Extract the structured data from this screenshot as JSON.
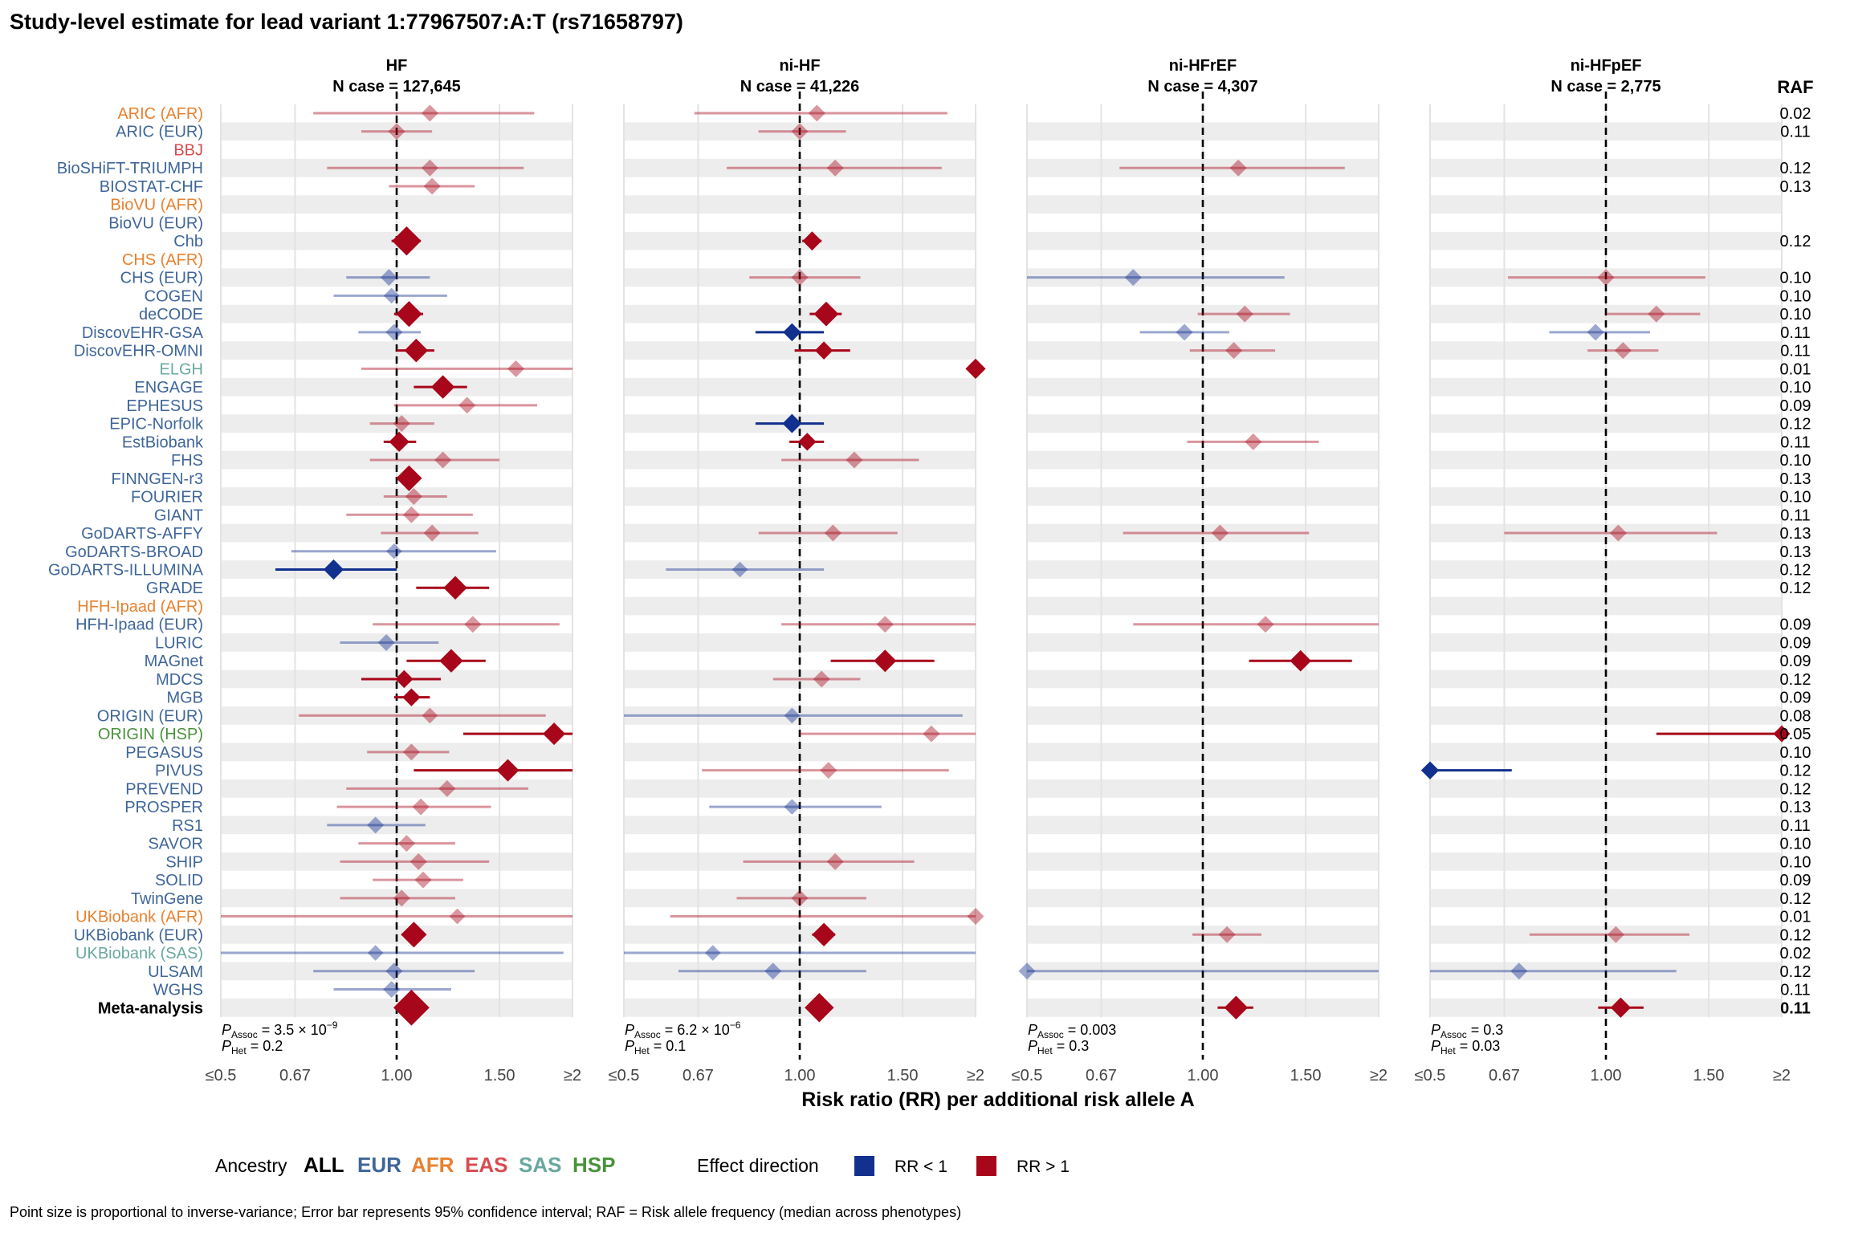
{
  "chart_data": {
    "type": "forest",
    "title": "Study-level estimate for lead variant 1:77967507:A:T (rs71658797)",
    "xlabel": "Risk ratio (RR) per additional risk allele A",
    "x_scale": "log",
    "xlim": [
      0.5,
      2
    ],
    "x_ticks": [
      0.5,
      0.67,
      1.0,
      1.5,
      2
    ],
    "x_tick_labels": [
      "≤0.5",
      "0.67",
      "1.00",
      "1.50",
      "≥2"
    ],
    "reference_line": 1.0,
    "raf_header": "RAF",
    "colors": {
      "EUR": "#3f6699",
      "AFR": "#e8812f",
      "EAS": "#d84c51",
      "SAS": "#69a89f",
      "HSP": "#49923b",
      "ALL": "#000000",
      "rr_low": "#12308e",
      "rr_high": "#a8061a"
    },
    "studies": [
      {
        "name": "ARIC (AFR)",
        "ancestry": "AFR",
        "raf": "0.02"
      },
      {
        "name": "ARIC (EUR)",
        "ancestry": "EUR",
        "raf": "0.11"
      },
      {
        "name": "BBJ",
        "ancestry": "EAS",
        "raf": ""
      },
      {
        "name": "BioSHiFT-TRIUMPH",
        "ancestry": "EUR",
        "raf": "0.12"
      },
      {
        "name": "BIOSTAT-CHF",
        "ancestry": "EUR",
        "raf": "0.13"
      },
      {
        "name": "BioVU (AFR)",
        "ancestry": "AFR",
        "raf": ""
      },
      {
        "name": "BioVU (EUR)",
        "ancestry": "EUR",
        "raf": ""
      },
      {
        "name": "Chb",
        "ancestry": "EUR",
        "raf": "0.12"
      },
      {
        "name": "CHS (AFR)",
        "ancestry": "AFR",
        "raf": ""
      },
      {
        "name": "CHS (EUR)",
        "ancestry": "EUR",
        "raf": "0.10"
      },
      {
        "name": "COGEN",
        "ancestry": "EUR",
        "raf": "0.10"
      },
      {
        "name": "deCODE",
        "ancestry": "EUR",
        "raf": "0.10"
      },
      {
        "name": "DiscovEHR-GSA",
        "ancestry": "EUR",
        "raf": "0.11"
      },
      {
        "name": "DiscovEHR-OMNI",
        "ancestry": "EUR",
        "raf": "0.11"
      },
      {
        "name": "ELGH",
        "ancestry": "SAS",
        "raf": "0.01"
      },
      {
        "name": "ENGAGE",
        "ancestry": "EUR",
        "raf": "0.10"
      },
      {
        "name": "EPHESUS",
        "ancestry": "EUR",
        "raf": "0.09"
      },
      {
        "name": "EPIC-Norfolk",
        "ancestry": "EUR",
        "raf": "0.12"
      },
      {
        "name": "EstBiobank",
        "ancestry": "EUR",
        "raf": "0.11"
      },
      {
        "name": "FHS",
        "ancestry": "EUR",
        "raf": "0.10"
      },
      {
        "name": "FINNGEN-r3",
        "ancestry": "EUR",
        "raf": "0.13"
      },
      {
        "name": "FOURIER",
        "ancestry": "EUR",
        "raf": "0.10"
      },
      {
        "name": "GIANT",
        "ancestry": "EUR",
        "raf": "0.11"
      },
      {
        "name": "GoDARTS-AFFY",
        "ancestry": "EUR",
        "raf": "0.13"
      },
      {
        "name": "GoDARTS-BROAD",
        "ancestry": "EUR",
        "raf": "0.13"
      },
      {
        "name": "GoDARTS-ILLUMINA",
        "ancestry": "EUR",
        "raf": "0.12"
      },
      {
        "name": "GRADE",
        "ancestry": "EUR",
        "raf": "0.12"
      },
      {
        "name": "HFH-Ipaad (AFR)",
        "ancestry": "AFR",
        "raf": ""
      },
      {
        "name": "HFH-Ipaad (EUR)",
        "ancestry": "EUR",
        "raf": "0.09"
      },
      {
        "name": "LURIC",
        "ancestry": "EUR",
        "raf": "0.09"
      },
      {
        "name": "MAGnet",
        "ancestry": "EUR",
        "raf": "0.09"
      },
      {
        "name": "MDCS",
        "ancestry": "EUR",
        "raf": "0.12"
      },
      {
        "name": "MGB",
        "ancestry": "EUR",
        "raf": "0.09"
      },
      {
        "name": "ORIGIN (EUR)",
        "ancestry": "EUR",
        "raf": "0.08"
      },
      {
        "name": "ORIGIN (HSP)",
        "ancestry": "HSP",
        "raf": "0.05"
      },
      {
        "name": "PEGASUS",
        "ancestry": "EUR",
        "raf": "0.10"
      },
      {
        "name": "PIVUS",
        "ancestry": "EUR",
        "raf": "0.12"
      },
      {
        "name": "PREVEND",
        "ancestry": "EUR",
        "raf": "0.12"
      },
      {
        "name": "PROSPER",
        "ancestry": "EUR",
        "raf": "0.13"
      },
      {
        "name": "RS1",
        "ancestry": "EUR",
        "raf": "0.11"
      },
      {
        "name": "SAVOR",
        "ancestry": "EUR",
        "raf": "0.10"
      },
      {
        "name": "SHIP",
        "ancestry": "EUR",
        "raf": "0.10"
      },
      {
        "name": "SOLID",
        "ancestry": "EUR",
        "raf": "0.09"
      },
      {
        "name": "TwinGene",
        "ancestry": "EUR",
        "raf": "0.12"
      },
      {
        "name": "UKBiobank (AFR)",
        "ancestry": "AFR",
        "raf": "0.01"
      },
      {
        "name": "UKBiobank (EUR)",
        "ancestry": "EUR",
        "raf": "0.12"
      },
      {
        "name": "UKBiobank (SAS)",
        "ancestry": "SAS",
        "raf": "0.02"
      },
      {
        "name": "ULSAM",
        "ancestry": "EUR",
        "raf": "0.12"
      },
      {
        "name": "WGHS",
        "ancestry": "EUR",
        "raf": "0.11"
      },
      {
        "name": "Meta-analysis",
        "ancestry": "ALL",
        "raf": "0.11"
      }
    ],
    "panels": [
      {
        "name": "HF",
        "n_case": "N case = 127,645",
        "p_assoc_mant": "3.5",
        "p_assoc_exp": "−9",
        "p_het": "0.2",
        "estimates": [
          [
            1.14,
            0.72,
            1.72,
            0.5
          ],
          [
            1.0,
            0.87,
            1.15,
            0.5
          ],
          null,
          [
            1.14,
            0.76,
            1.65,
            0.5
          ],
          [
            1.15,
            0.97,
            1.36,
            0.5
          ],
          null,
          null,
          [
            1.04,
            0.98,
            1.1,
            1.6
          ],
          null,
          [
            0.97,
            0.82,
            1.14,
            0.5
          ],
          [
            0.98,
            0.78,
            1.22,
            0.4
          ],
          [
            1.05,
            0.99,
            1.11,
            1.3
          ],
          [
            0.99,
            0.86,
            1.1,
            0.5
          ],
          [
            1.08,
            1.0,
            1.16,
            1.1
          ],
          [
            1.6,
            0.87,
            2.5,
            0.5
          ],
          [
            1.2,
            1.07,
            1.32,
            1.1
          ],
          [
            1.32,
            0.99,
            1.74,
            0.5
          ],
          [
            1.02,
            0.9,
            1.16,
            0.5
          ],
          [
            1.01,
            0.95,
            1.08,
            0.8
          ],
          [
            1.2,
            0.9,
            1.5,
            0.5
          ],
          [
            1.05,
            1.01,
            1.09,
            1.3
          ],
          [
            1.07,
            0.95,
            1.22,
            0.5
          ],
          [
            1.06,
            0.82,
            1.35,
            0.5
          ],
          [
            1.15,
            0.94,
            1.38,
            0.5
          ],
          [
            0.99,
            0.66,
            1.48,
            0.4
          ],
          [
            0.78,
            0.62,
            1.0,
            0.8
          ],
          [
            1.26,
            1.08,
            1.44,
            1.1
          ],
          null,
          [
            1.35,
            0.91,
            1.9,
            0.5
          ],
          [
            0.96,
            0.8,
            1.18,
            0.5
          ],
          [
            1.24,
            1.04,
            1.42,
            1.1
          ],
          [
            1.03,
            0.87,
            1.19,
            0.6
          ],
          [
            1.06,
            0.99,
            1.14,
            0.6
          ],
          [
            1.14,
            0.68,
            1.8,
            0.4
          ],
          [
            1.86,
            1.3,
            2.5,
            1.0
          ],
          [
            1.06,
            0.89,
            1.23,
            0.5
          ],
          [
            1.55,
            1.07,
            2.4,
            1.0
          ],
          [
            1.22,
            0.82,
            1.68,
            0.5
          ],
          [
            1.1,
            0.79,
            1.45,
            0.5
          ],
          [
            0.92,
            0.76,
            1.12,
            0.5
          ],
          [
            1.04,
            0.86,
            1.26,
            0.5
          ],
          [
            1.09,
            0.8,
            1.44,
            0.5
          ],
          [
            1.11,
            0.91,
            1.3,
            0.5
          ],
          [
            1.02,
            0.8,
            1.26,
            0.5
          ],
          [
            1.27,
            0.4,
            2.5,
            0.4
          ],
          [
            1.07,
            1.02,
            1.11,
            1.3
          ],
          [
            0.92,
            0.4,
            1.93,
            0.4
          ],
          [
            0.99,
            0.72,
            1.36,
            0.5
          ],
          [
            0.98,
            0.78,
            1.24,
            0.5
          ],
          [
            1.06,
            1.0,
            1.11,
            2.2
          ]
        ]
      },
      {
        "name": "ni-HF",
        "n_case": "N case = 41,226",
        "p_assoc_mant": "6.2",
        "p_assoc_exp": "−6",
        "p_het": "0.1",
        "estimates": [
          [
            1.07,
            0.66,
            1.79,
            0.5
          ],
          [
            1.0,
            0.85,
            1.2,
            0.5
          ],
          null,
          [
            1.15,
            0.75,
            1.75,
            0.5
          ],
          null,
          null,
          null,
          [
            1.05,
            1.01,
            1.09,
            0.7
          ],
          null,
          [
            1.0,
            0.82,
            1.27,
            0.5
          ],
          null,
          [
            1.11,
            1.04,
            1.18,
            1.2
          ],
          [
            0.97,
            0.84,
            1.1,
            0.6
          ],
          [
            1.1,
            0.98,
            1.22,
            0.6
          ],
          [
            2.0,
            2.0,
            2.0,
            0.8
          ],
          null,
          null,
          [
            0.97,
            0.84,
            1.1,
            0.7
          ],
          [
            1.03,
            0.96,
            1.1,
            0.6
          ],
          [
            1.24,
            0.93,
            1.6,
            0.5
          ],
          null,
          null,
          null,
          [
            1.14,
            0.85,
            1.47,
            0.5
          ],
          null,
          [
            0.79,
            0.59,
            1.1,
            0.4
          ],
          null,
          null,
          [
            1.4,
            0.93,
            2.0,
            0.5
          ],
          null,
          [
            1.4,
            1.13,
            1.7,
            1.0
          ],
          [
            1.09,
            0.9,
            1.27,
            0.5
          ],
          null,
          [
            0.97,
            0.5,
            1.9,
            0.4
          ],
          [
            1.68,
            1.0,
            2.0,
            0.5
          ],
          null,
          [
            1.12,
            0.68,
            1.8,
            0.5
          ],
          null,
          [
            0.97,
            0.7,
            1.38,
            0.4
          ],
          null,
          null,
          [
            1.15,
            0.8,
            1.57,
            0.5
          ],
          null,
          [
            1.0,
            0.78,
            1.3,
            0.5
          ],
          [
            2.0,
            0.6,
            2.0,
            0.5
          ],
          [
            1.1,
            1.05,
            1.15,
            1.1
          ],
          [
            0.71,
            0.5,
            2.0,
            0.4
          ],
          [
            0.9,
            0.62,
            1.3,
            0.5
          ],
          null,
          [
            1.08,
            1.08,
            1.08,
            1.6
          ]
        ]
      },
      {
        "name": "ni-HFrEF",
        "n_case": "N case = 4,307",
        "p_assoc_mant": "0.003",
        "p_assoc_exp": "",
        "p_het": "0.3",
        "estimates": [
          null,
          null,
          null,
          [
            1.15,
            0.72,
            1.75,
            0.5
          ],
          null,
          null,
          null,
          null,
          null,
          [
            0.76,
            0.5,
            1.38,
            0.5
          ],
          null,
          [
            1.18,
            0.98,
            1.41,
            0.5
          ],
          [
            0.93,
            0.78,
            1.11,
            0.5
          ],
          [
            1.13,
            0.95,
            1.33,
            0.5
          ],
          null,
          null,
          null,
          null,
          [
            1.22,
            0.94,
            1.58,
            0.5
          ],
          null,
          null,
          null,
          null,
          [
            1.07,
            0.73,
            1.52,
            0.5
          ],
          null,
          null,
          null,
          null,
          [
            1.28,
            0.76,
            2.0,
            0.5
          ],
          null,
          [
            1.47,
            1.2,
            1.8,
            0.9
          ],
          null,
          null,
          null,
          null,
          null,
          null,
          null,
          null,
          null,
          null,
          null,
          null,
          null,
          null,
          [
            1.1,
            0.96,
            1.26,
            0.5
          ],
          null,
          [
            0.5,
            0.5,
            2.0,
            0.5
          ],
          null,
          [
            1.14,
            1.06,
            1.22,
            1.1
          ]
        ]
      },
      {
        "name": "ni-HFpEF",
        "n_case": "N case = 2,775",
        "p_assoc_mant": "0.3",
        "p_assoc_exp": "",
        "p_het": "0.03",
        "estimates": [
          null,
          null,
          null,
          null,
          null,
          null,
          null,
          null,
          null,
          [
            1.0,
            0.68,
            1.48,
            0.5
          ],
          null,
          [
            1.22,
            1.0,
            1.45,
            0.5
          ],
          [
            0.96,
            0.8,
            1.19,
            0.5
          ],
          [
            1.07,
            0.93,
            1.23,
            0.5
          ],
          null,
          null,
          null,
          null,
          null,
          null,
          null,
          null,
          null,
          [
            1.05,
            0.67,
            1.55,
            0.5
          ],
          null,
          null,
          null,
          null,
          null,
          null,
          null,
          null,
          null,
          null,
          [
            2.0,
            1.22,
            2.0,
            0.5
          ],
          null,
          [
            0.5,
            0.5,
            0.69,
            0.6
          ],
          null,
          null,
          null,
          null,
          null,
          null,
          null,
          null,
          [
            1.04,
            0.74,
            1.39,
            0.5
          ],
          null,
          [
            0.71,
            0.5,
            1.32,
            0.5
          ],
          null,
          [
            1.06,
            0.97,
            1.16,
            0.8
          ]
        ]
      }
    ],
    "legend": {
      "ancestry_title": "Ancestry",
      "ancestry_items": [
        {
          "label": "ALL",
          "key": "ALL"
        },
        {
          "label": "EUR",
          "key": "EUR"
        },
        {
          "label": "AFR",
          "key": "AFR"
        },
        {
          "label": "EAS",
          "key": "EAS"
        },
        {
          "label": "SAS",
          "key": "SAS"
        },
        {
          "label": "HSP",
          "key": "HSP"
        }
      ],
      "effect_title": "Effect direction",
      "effect_items": [
        {
          "label": "RR < 1",
          "color": "#12308e"
        },
        {
          "label": "RR > 1",
          "color": "#a8061a"
        }
      ]
    },
    "caption": "Point size is proportional to inverse-variance; Error bar represents 95% confidence interval; RAF = Risk allele frequency (median across phenotypes)"
  }
}
